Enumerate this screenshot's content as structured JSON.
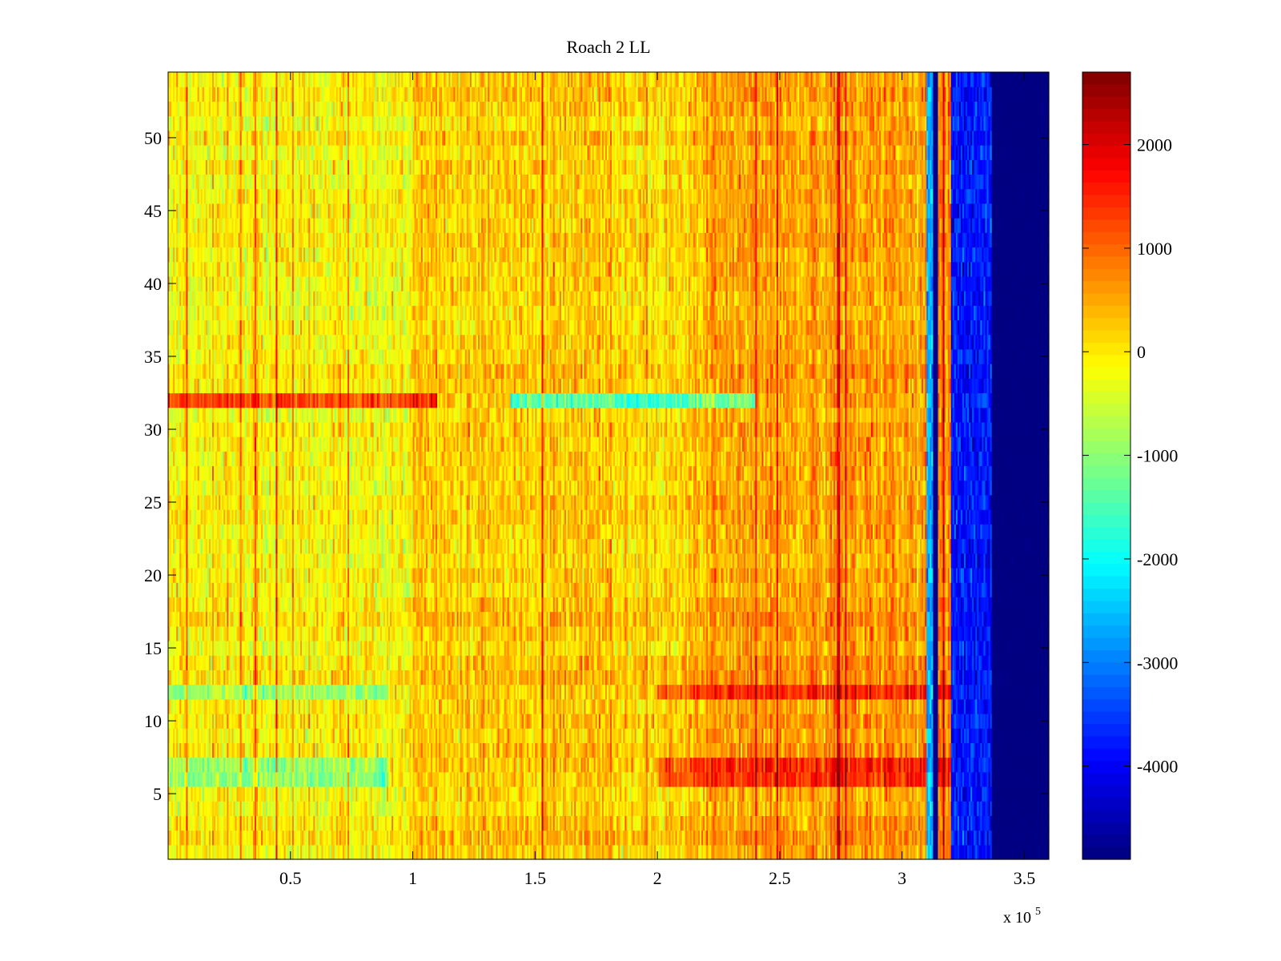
{
  "chart_data": {
    "type": "heatmap",
    "title": "Roach 2 LL",
    "xlabel": "",
    "ylabel": "",
    "x_multiplier_label": "x 10",
    "x_multiplier_exponent": "5",
    "xlim": [
      0,
      3.6
    ],
    "ylim": [
      0.5,
      54.5
    ],
    "x_ticks": [
      0.5,
      1,
      1.5,
      2,
      2.5,
      3,
      3.5
    ],
    "x_tick_labels": [
      "0.5",
      "1",
      "1.5",
      "2",
      "2.5",
      "3",
      "3.5"
    ],
    "y_ticks": [
      5,
      10,
      15,
      20,
      25,
      30,
      35,
      40,
      45,
      50
    ],
    "y_tick_labels": [
      "5",
      "10",
      "15",
      "20",
      "25",
      "30",
      "35",
      "40",
      "45",
      "50"
    ],
    "rows": 54,
    "colormap": "jet",
    "clim": [
      -4900,
      2700
    ],
    "colorbar_ticks": [
      2000,
      1000,
      0,
      -1000,
      -2000,
      -3000,
      -4000
    ],
    "colorbar_tick_labels": [
      "2000",
      "1000",
      "0",
      "-1000",
      "-2000",
      "-3000",
      "-4000"
    ],
    "regions": [
      {
        "x_start": 0.0,
        "x_end": 1.0,
        "typical_value": -100,
        "note": "yellow/orange noise"
      },
      {
        "x_start": 1.0,
        "x_end": 2.2,
        "typical_value": 250,
        "note": "orange noise"
      },
      {
        "x_start": 2.2,
        "x_end": 3.1,
        "typical_value": 600,
        "note": "orange/red noise"
      },
      {
        "x_start": 3.1,
        "x_end": 3.125,
        "typical_value": -2600,
        "note": "cyan/blue stripe"
      },
      {
        "x_start": 3.125,
        "x_end": 3.145,
        "typical_value": -4800,
        "note": "dark blue stripe"
      },
      {
        "x_start": 3.145,
        "x_end": 3.2,
        "typical_value": 700,
        "note": "orange/red narrow band"
      },
      {
        "x_start": 3.2,
        "x_end": 3.37,
        "typical_value": -3800,
        "note": "blue band"
      },
      {
        "x_start": 3.37,
        "x_end": 3.6,
        "typical_value": -4900,
        "note": "dark blue (minimum)"
      }
    ],
    "highlight_rows": [
      {
        "row": 32,
        "note": "red in 0–1.1, cyan in 1.4–2.4"
      },
      {
        "row": 12,
        "note": "red band for x > 2.0"
      },
      {
        "row": 7,
        "note": "red band for x > 2.0"
      },
      {
        "row": 6,
        "note": "red band for x > 2.0, cyan for x < 0.9"
      }
    ]
  }
}
